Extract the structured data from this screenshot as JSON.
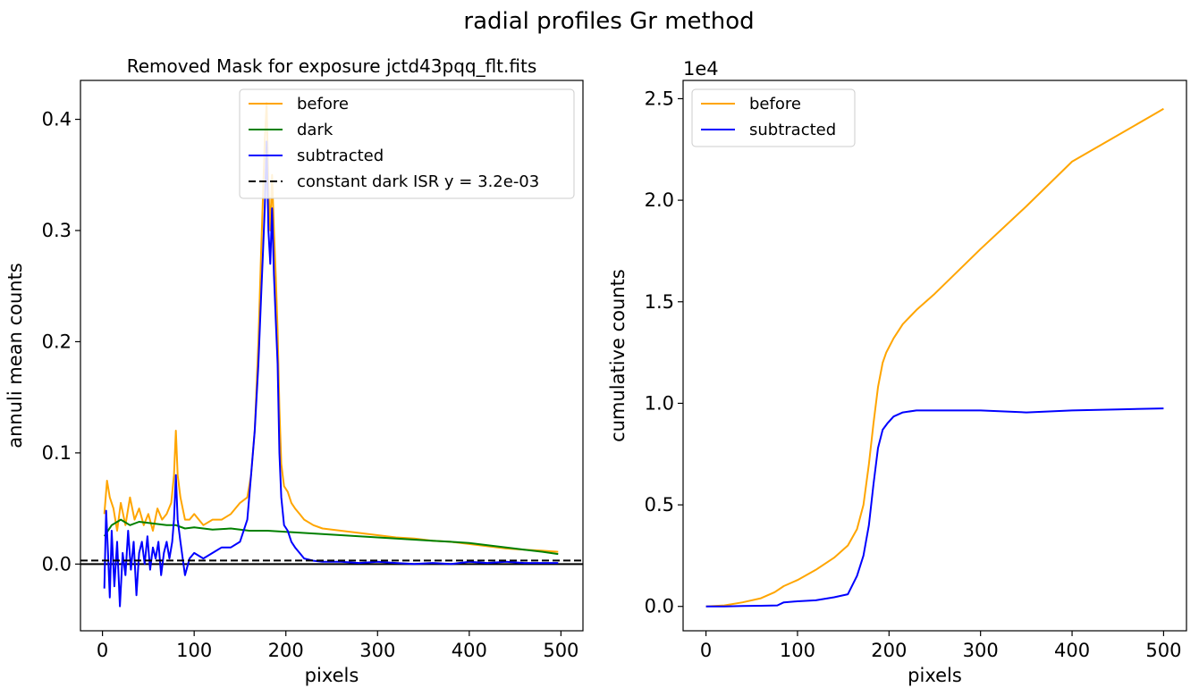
{
  "figure": {
    "suptitle": "radial profiles Gr method"
  },
  "chart_data": [
    {
      "type": "line",
      "title": "Removed Mask for exposure jctd43pqq_flt.fits",
      "xlabel": "pixels",
      "ylabel": "annuli mean counts",
      "xlim": [
        -24,
        524
      ],
      "ylim": [
        -0.06,
        0.435
      ],
      "xticks": [
        0,
        100,
        200,
        300,
        400,
        500
      ],
      "xtick_labels": [
        "0",
        "100",
        "200",
        "300",
        "400",
        "500"
      ],
      "yticks": [
        0.0,
        0.1,
        0.2,
        0.3,
        0.4
      ],
      "ytick_labels": [
        "0.0",
        "0.1",
        "0.2",
        "0.3",
        "0.4"
      ],
      "legend_position": "upper-right",
      "grid": false,
      "hlines": [
        {
          "y": 0.0,
          "style": "solid",
          "color": "#000000"
        }
      ],
      "series": [
        {
          "name": "before",
          "color": "#ffa500",
          "style": "solid",
          "x": [
            2,
            5,
            8,
            12,
            16,
            20,
            25,
            30,
            35,
            40,
            45,
            50,
            55,
            60,
            65,
            70,
            75,
            78,
            80,
            82,
            85,
            90,
            95,
            100,
            110,
            120,
            130,
            140,
            150,
            158,
            162,
            166,
            170,
            173,
            175,
            177,
            179,
            181,
            183,
            185,
            187,
            189,
            191,
            193,
            195,
            198,
            202,
            206,
            210,
            215,
            220,
            230,
            240,
            260,
            280,
            300,
            320,
            340,
            360,
            380,
            400,
            420,
            440,
            460,
            480,
            497
          ],
          "y": [
            0.045,
            0.075,
            0.06,
            0.05,
            0.03,
            0.055,
            0.035,
            0.06,
            0.04,
            0.05,
            0.035,
            0.045,
            0.03,
            0.05,
            0.04,
            0.045,
            0.055,
            0.08,
            0.12,
            0.08,
            0.06,
            0.04,
            0.04,
            0.045,
            0.035,
            0.04,
            0.04,
            0.045,
            0.055,
            0.06,
            0.08,
            0.12,
            0.2,
            0.28,
            0.33,
            0.38,
            0.415,
            0.34,
            0.3,
            0.35,
            0.3,
            0.26,
            0.21,
            0.14,
            0.09,
            0.07,
            0.065,
            0.055,
            0.05,
            0.045,
            0.04,
            0.035,
            0.032,
            0.03,
            0.028,
            0.026,
            0.024,
            0.023,
            0.021,
            0.02,
            0.018,
            0.016,
            0.014,
            0.013,
            0.012,
            0.011
          ]
        },
        {
          "name": "dark",
          "color": "#008000",
          "style": "solid",
          "x": [
            2,
            10,
            20,
            30,
            40,
            50,
            60,
            70,
            80,
            90,
            100,
            120,
            140,
            160,
            180,
            200,
            220,
            240,
            260,
            280,
            300,
            320,
            340,
            360,
            380,
            400,
            420,
            440,
            460,
            480,
            497
          ],
          "y": [
            0.025,
            0.035,
            0.04,
            0.035,
            0.038,
            0.037,
            0.036,
            0.035,
            0.035,
            0.032,
            0.033,
            0.031,
            0.032,
            0.03,
            0.03,
            0.029,
            0.028,
            0.027,
            0.026,
            0.025,
            0.024,
            0.023,
            0.022,
            0.021,
            0.02,
            0.019,
            0.017,
            0.015,
            0.013,
            0.011,
            0.009
          ]
        },
        {
          "name": "subtracted",
          "color": "#0000ff",
          "style": "solid",
          "x": [
            2,
            4,
            6,
            8,
            10,
            13,
            16,
            19,
            22,
            25,
            28,
            31,
            34,
            37,
            40,
            43,
            46,
            49,
            52,
            55,
            58,
            61,
            64,
            67,
            70,
            73,
            76,
            78,
            80,
            82,
            85,
            90,
            95,
            100,
            110,
            120,
            130,
            140,
            150,
            158,
            162,
            166,
            170,
            173,
            175,
            177,
            179,
            181,
            183,
            185,
            187,
            189,
            191,
            193,
            195,
            198,
            202,
            206,
            210,
            215,
            220,
            230,
            240,
            260,
            280,
            300,
            320,
            340,
            360,
            380,
            400,
            420,
            440,
            460,
            480,
            497
          ],
          "y": [
            -0.022,
            0.048,
            0.01,
            -0.03,
            0.03,
            -0.02,
            0.02,
            -0.038,
            0.01,
            -0.01,
            0.03,
            -0.005,
            0.02,
            -0.028,
            0.01,
            0.02,
            0.0,
            0.025,
            -0.005,
            0.015,
            0.005,
            0.02,
            -0.01,
            0.01,
            0.02,
            0.005,
            0.02,
            0.04,
            0.08,
            0.04,
            0.02,
            -0.01,
            0.005,
            0.01,
            0.005,
            0.01,
            0.015,
            0.015,
            0.02,
            0.04,
            0.08,
            0.12,
            0.18,
            0.24,
            0.28,
            0.32,
            0.38,
            0.3,
            0.27,
            0.32,
            0.26,
            0.22,
            0.18,
            0.1,
            0.06,
            0.035,
            0.03,
            0.02,
            0.015,
            0.01,
            0.005,
            0.003,
            0.002,
            0.002,
            0.001,
            0.002,
            0.001,
            0.0,
            0.001,
            0.0,
            0.002,
            0.001,
            0.002,
            0.001,
            0.001,
            0.001
          ]
        },
        {
          "name": "constant dark ISR y = 3.2e-03",
          "color": "#000000",
          "style": "dashed",
          "x": [
            -24,
            524
          ],
          "y": [
            0.0032,
            0.0032
          ]
        }
      ]
    },
    {
      "type": "line",
      "title": "",
      "xlabel": "pixels",
      "ylabel": "cumulative counts",
      "offset_label": "1e4",
      "xlim": [
        -25,
        525
      ],
      "ylim": [
        -1200,
        25900
      ],
      "xticks": [
        0,
        100,
        200,
        300,
        400,
        500
      ],
      "xtick_labels": [
        "0",
        "100",
        "200",
        "300",
        "400",
        "500"
      ],
      "yticks": [
        0,
        5000,
        10000,
        15000,
        20000,
        25000
      ],
      "ytick_labels": [
        "0.0",
        "0.5",
        "1.0",
        "1.5",
        "2.0",
        "2.5"
      ],
      "legend_position": "upper-left",
      "grid": false,
      "series": [
        {
          "name": "before",
          "color": "#ffa500",
          "style": "solid",
          "x": [
            0,
            20,
            40,
            60,
            75,
            85,
            100,
            120,
            140,
            155,
            165,
            172,
            178,
            183,
            188,
            193,
            197,
            205,
            215,
            230,
            250,
            300,
            350,
            400,
            450,
            500
          ],
          "y": [
            0,
            50,
            200,
            400,
            700,
            1000,
            1300,
            1800,
            2400,
            3000,
            3800,
            5000,
            7000,
            9000,
            10800,
            12000,
            12500,
            13200,
            13900,
            14600,
            15400,
            17600,
            19700,
            21900,
            23200,
            24500
          ]
        },
        {
          "name": "subtracted",
          "color": "#0000ff",
          "style": "solid",
          "x": [
            0,
            20,
            40,
            60,
            78,
            85,
            100,
            120,
            140,
            155,
            165,
            172,
            178,
            183,
            188,
            193,
            198,
            205,
            215,
            230,
            250,
            300,
            350,
            400,
            450,
            500
          ],
          "y": [
            0,
            0,
            20,
            30,
            50,
            200,
            250,
            300,
            450,
            600,
            1500,
            2500,
            4000,
            6000,
            7800,
            8700,
            9000,
            9350,
            9550,
            9650,
            9650,
            9650,
            9550,
            9650,
            9700,
            9750
          ]
        }
      ]
    }
  ]
}
